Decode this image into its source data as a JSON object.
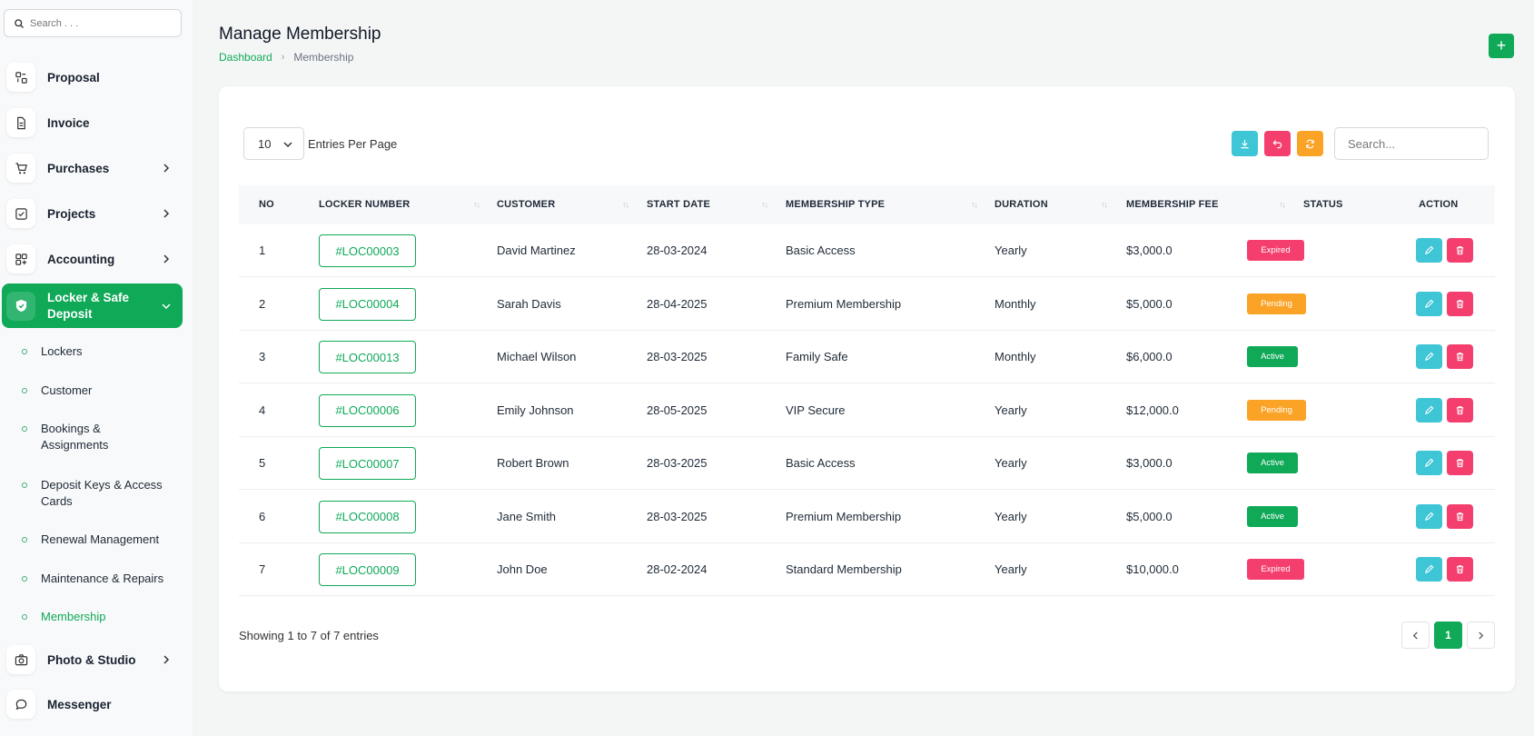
{
  "sidebar": {
    "search_placeholder": "Search . . .",
    "items": [
      {
        "label": "Proposal",
        "icon": "proposal-icon"
      },
      {
        "label": "Invoice",
        "icon": "invoice-icon"
      },
      {
        "label": "Purchases",
        "icon": "cart-icon"
      },
      {
        "label": "Projects",
        "icon": "projects-icon"
      },
      {
        "label": "Accounting",
        "icon": "accounting-icon"
      },
      {
        "label": "Locker & Safe Deposit",
        "icon": "shield-icon"
      },
      {
        "label": "Photo & Studio",
        "icon": "camera-icon"
      },
      {
        "label": "Messenger",
        "icon": "chat-icon"
      }
    ],
    "sub_items": [
      {
        "label": "Lockers"
      },
      {
        "label": "Customer"
      },
      {
        "label": "Bookings & Assignments"
      },
      {
        "label": "Deposit Keys & Access Cards"
      },
      {
        "label": "Renewal Management"
      },
      {
        "label": "Maintenance & Repairs"
      },
      {
        "label": "Membership"
      }
    ]
  },
  "header": {
    "title": "Manage Membership",
    "breadcrumb_home": "Dashboard",
    "breadcrumb_current": "Membership",
    "add_label": "+"
  },
  "toolbar": {
    "entries_value": "10",
    "entries_label": "Entries Per Page",
    "search_placeholder": "Search..."
  },
  "table": {
    "headers": [
      "NO",
      "LOCKER NUMBER",
      "CUSTOMER",
      "START DATE",
      "MEMBERSHIP TYPE",
      "DURATION",
      "MEMBERSHIP FEE",
      "STATUS",
      "ACTION"
    ],
    "rows": [
      {
        "no": "1",
        "locker": "#LOC00003",
        "customer": "David Martinez",
        "start": "28-03-2024",
        "type": "Basic Access",
        "duration": "Yearly",
        "fee": "$3,000.0",
        "status": "Expired"
      },
      {
        "no": "2",
        "locker": "#LOC00004",
        "customer": "Sarah Davis",
        "start": "28-04-2025",
        "type": "Premium Membership",
        "duration": "Monthly",
        "fee": "$5,000.0",
        "status": "Pending"
      },
      {
        "no": "3",
        "locker": "#LOC00013",
        "customer": "Michael Wilson",
        "start": "28-03-2025",
        "type": "Family Safe",
        "duration": "Monthly",
        "fee": "$6,000.0",
        "status": "Active"
      },
      {
        "no": "4",
        "locker": "#LOC00006",
        "customer": "Emily Johnson",
        "start": "28-05-2025",
        "type": "VIP Secure",
        "duration": "Yearly",
        "fee": "$12,000.0",
        "status": "Pending"
      },
      {
        "no": "5",
        "locker": "#LOC00007",
        "customer": "Robert Brown",
        "start": "28-03-2025",
        "type": "Basic Access",
        "duration": "Yearly",
        "fee": "$3,000.0",
        "status": "Active"
      },
      {
        "no": "6",
        "locker": "#LOC00008",
        "customer": "Jane Smith",
        "start": "28-03-2025",
        "type": "Premium Membership",
        "duration": "Yearly",
        "fee": "$5,000.0",
        "status": "Active"
      },
      {
        "no": "7",
        "locker": "#LOC00009",
        "customer": "John Doe",
        "start": "28-02-2024",
        "type": "Standard Membership",
        "duration": "Yearly",
        "fee": "$10,000.0",
        "status": "Expired"
      }
    ]
  },
  "footer": {
    "showing": "Showing 1 to 7 of 7 entries",
    "current_page": "1"
  },
  "colors": {
    "accent": "#0fa958",
    "expired": "#f43f6e",
    "pending": "#fba326",
    "active": "#0fa958",
    "info": "#3ec5d6"
  }
}
